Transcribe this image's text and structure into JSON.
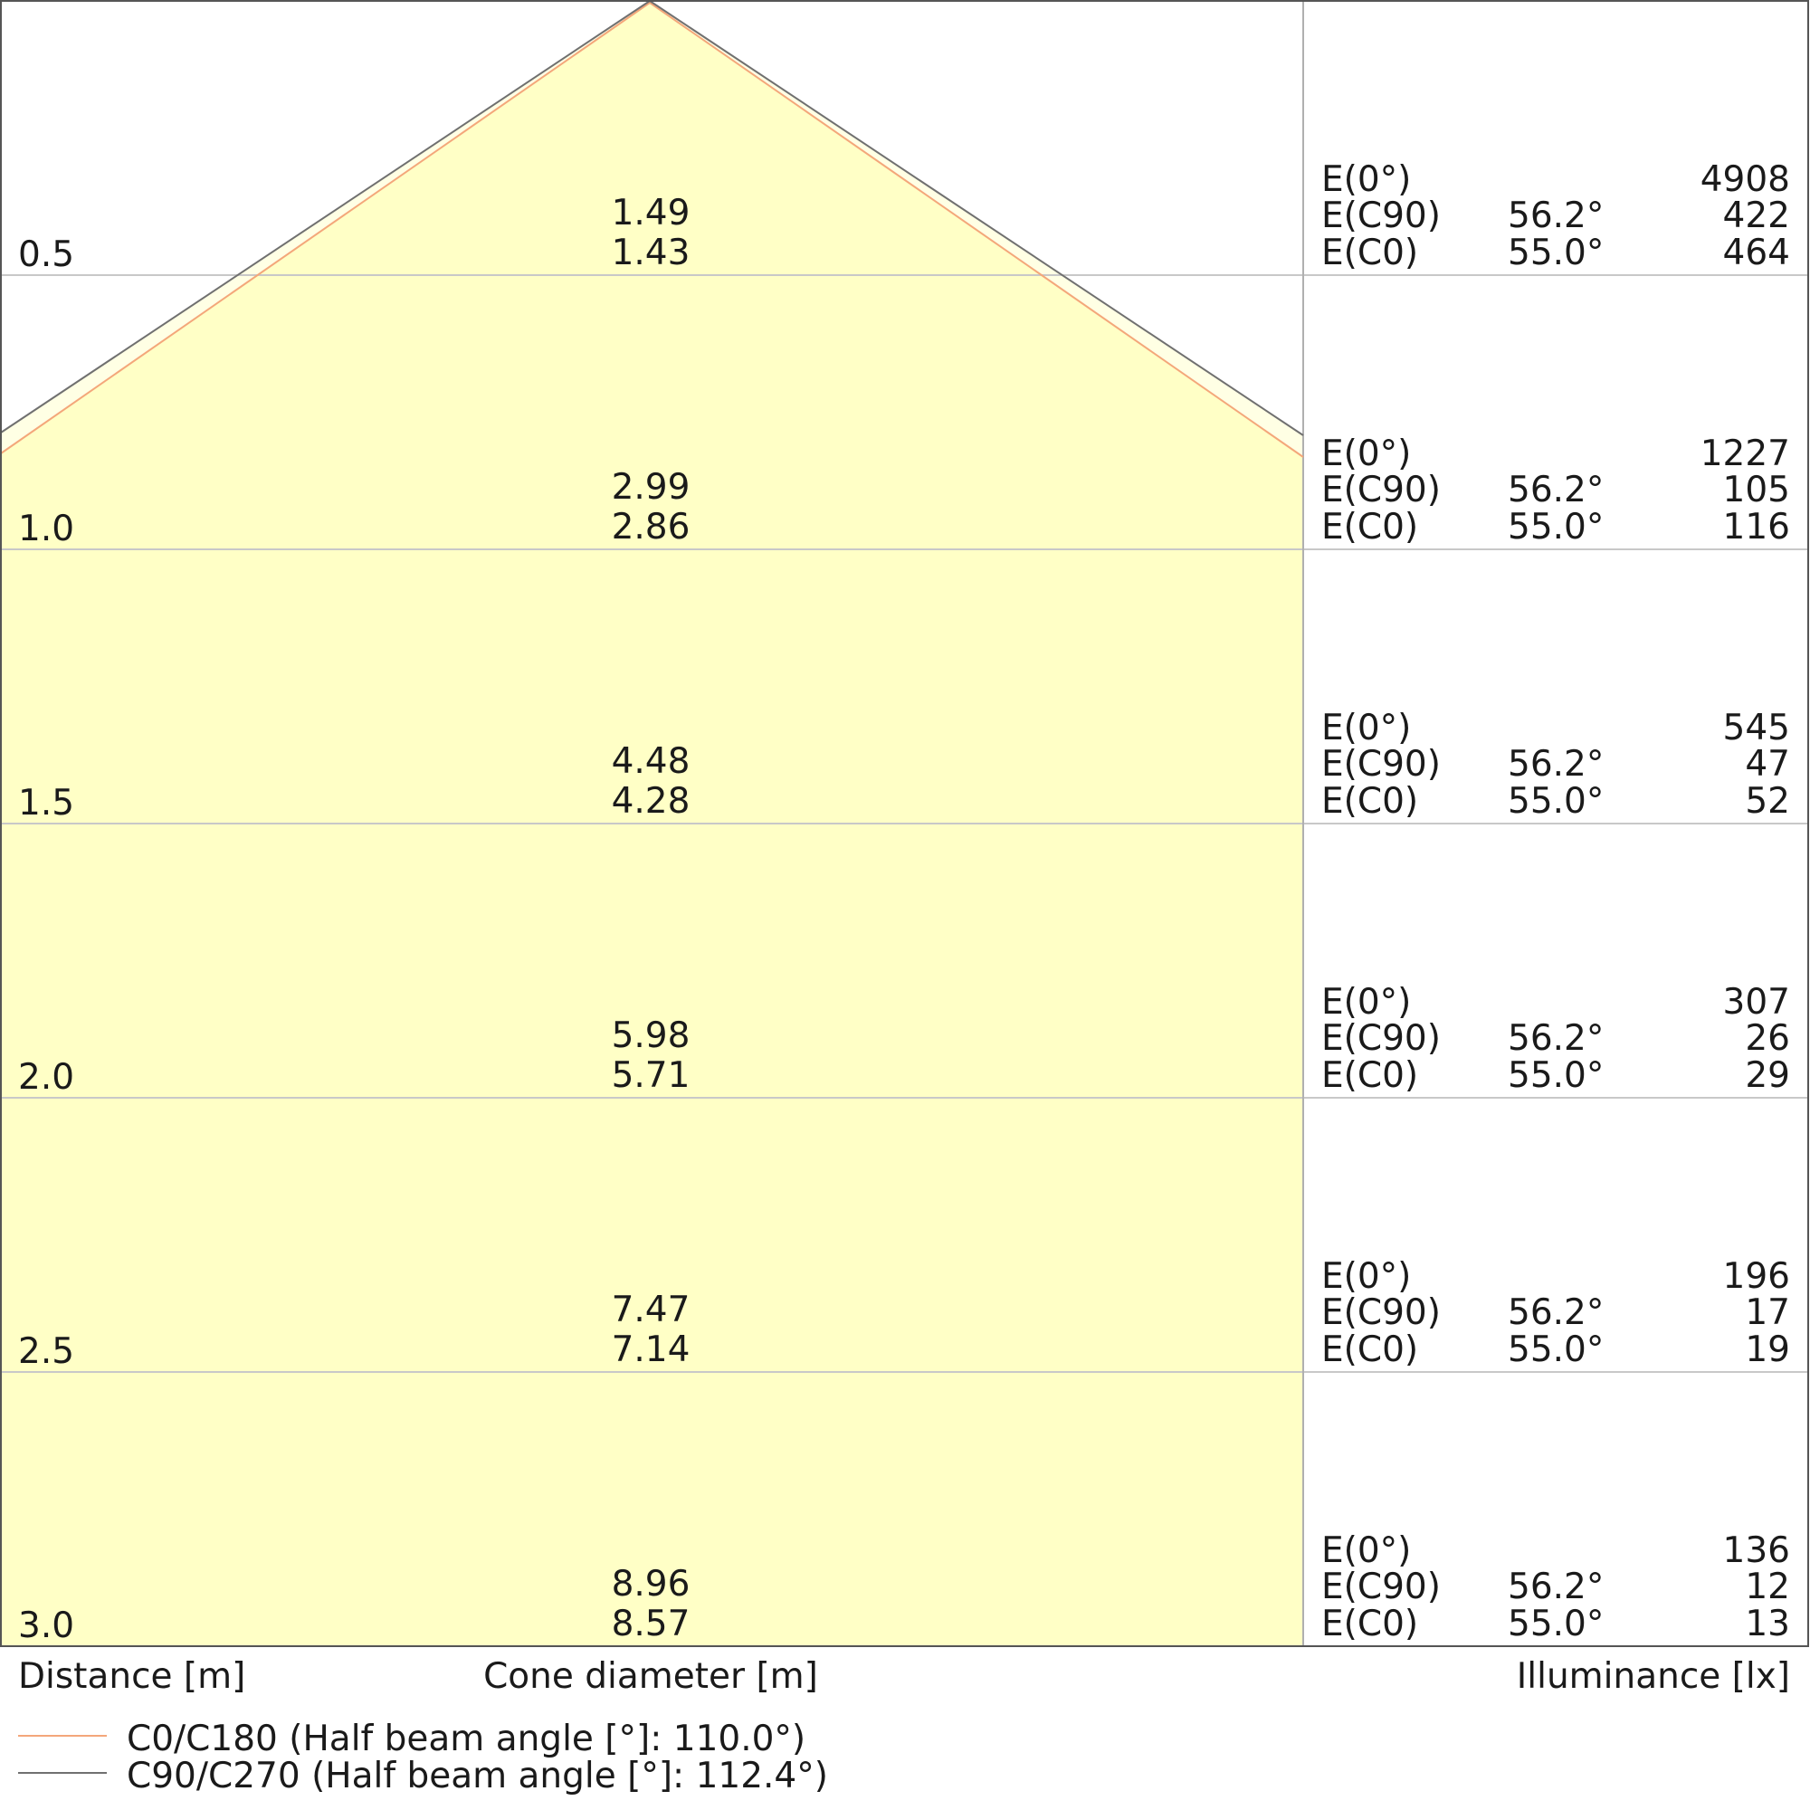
{
  "chart_data": {
    "type": "table",
    "xlabel": "Distance [m]",
    "center_label": "Cone diameter [m]",
    "ylabel": "Illuminance [lx]",
    "colors": {
      "fill": "#ffffc6",
      "c0": "#f4a77a",
      "c90": "#707070",
      "grid": "#c8c8c8"
    },
    "legend": [
      {
        "name": "C0/C180 (Half beam angle [°]: 110.0°)",
        "color": "#f4a77a"
      },
      {
        "name": "C90/C270 (Half beam angle [°]: 112.4°)",
        "color": "#707070"
      }
    ],
    "half_beam_angles": {
      "c0": 110.0,
      "c90": 112.4
    },
    "rows": [
      {
        "distance": "0.5",
        "d_c90": "1.49",
        "d_c0": "1.43",
        "e0": "4908",
        "ec90_angle": "56.2°",
        "ec90": "422",
        "ec0_angle": "55.0°",
        "ec0": "464"
      },
      {
        "distance": "1.0",
        "d_c90": "2.99",
        "d_c0": "2.86",
        "e0": "1227",
        "ec90_angle": "56.2°",
        "ec90": "105",
        "ec0_angle": "55.0°",
        "ec0": "116"
      },
      {
        "distance": "1.5",
        "d_c90": "4.48",
        "d_c0": "4.28",
        "e0": "545",
        "ec90_angle": "56.2°",
        "ec90": "47",
        "ec0_angle": "55.0°",
        "ec0": "52"
      },
      {
        "distance": "2.0",
        "d_c90": "5.98",
        "d_c0": "5.71",
        "e0": "307",
        "ec90_angle": "56.2°",
        "ec90": "26",
        "ec0_angle": "55.0°",
        "ec0": "29"
      },
      {
        "distance": "2.5",
        "d_c90": "7.47",
        "d_c0": "7.14",
        "e0": "196",
        "ec90_angle": "56.2°",
        "ec90": "17",
        "ec0_angle": "55.0°",
        "ec0": "19"
      },
      {
        "distance": "3.0",
        "d_c90": "8.96",
        "d_c0": "8.57",
        "e0": "136",
        "ec90_angle": "56.2°",
        "ec90": "12",
        "ec0_angle": "55.0°",
        "ec0": "13"
      }
    ],
    "row_labels": {
      "e0": "E(0°)",
      "ec90": "E(C90)",
      "ec0": "E(C0)"
    }
  }
}
